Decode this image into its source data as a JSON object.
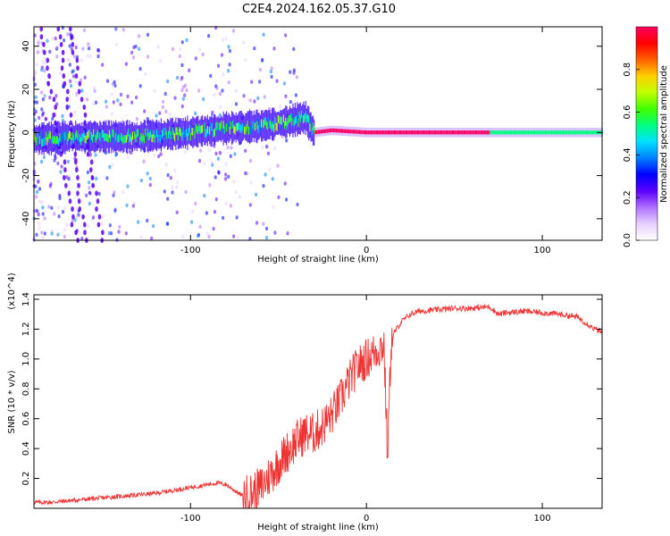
{
  "title": "C2E4.2024.162.05.37.G10",
  "chart_data": [
    {
      "type": "heatmap",
      "xlabel": "Height of straight line (km)",
      "ylabel": "Frequency (Hz)",
      "xlim": [
        -189,
        134
      ],
      "ylim": [
        -50,
        49
      ],
      "x_ticks": [
        -100,
        0,
        100
      ],
      "y_ticks": [
        -40,
        -20,
        0,
        20,
        40
      ],
      "grid": false,
      "colorbar": {
        "label": "Normalized spectral amplitude",
        "range": [
          0,
          1
        ],
        "ticks": [
          "0.0",
          "0.2",
          "0.4",
          "0.6",
          "0.8"
        ],
        "colormap": [
          "#ffffff",
          "#e6d0ff",
          "#b070ff",
          "#5a00ff",
          "#0000ff",
          "#0080ff",
          "#00e0ff",
          "#00ff80",
          "#40ff00",
          "#c0ff00",
          "#ffd000",
          "#ff6000",
          "#ff0000",
          "#ff0060"
        ]
      },
      "ridge": {
        "x": [
          -189,
          -160,
          -130,
          -100,
          -80,
          -60,
          -45,
          -35,
          -30,
          -20,
          0,
          20,
          60,
          100,
          134
        ],
        "freq": [
          -3,
          -2,
          -2,
          0,
          2,
          3,
          5,
          7,
          0,
          1,
          0,
          0,
          0,
          0,
          0
        ]
      },
      "notes": "Spectral amplitude ridge near 0 Hz; broad noisy cloud below about -30 km, narrow high-amplitude band above it"
    },
    {
      "type": "line",
      "xlabel": "Height of straight line (km)",
      "ylabel": "SNR (10 * v/v)",
      "y_multiplier": "(x10^4)",
      "xlim": [
        -189,
        134
      ],
      "ylim": [
        0,
        1.43
      ],
      "x_ticks": [
        -100,
        0,
        100
      ],
      "y_ticks": [
        "0.2",
        "0.4",
        "0.6",
        "0.8",
        "1.0",
        "1.2",
        "1.4"
      ],
      "color": "#ee3333",
      "series": [
        {
          "x": [
            -189,
            -180,
            -170,
            -160,
            -150,
            -140,
            -130,
            -120,
            -110,
            -100,
            -90,
            -85,
            -80,
            -75,
            -70,
            -65,
            -60,
            -55,
            -50,
            -45,
            -40,
            -35,
            -30,
            -25,
            -20,
            -15,
            -10,
            -5,
            0,
            5,
            10,
            12,
            14,
            16,
            20,
            25,
            30,
            40,
            50,
            60,
            70,
            75,
            80,
            90,
            100,
            110,
            120,
            125,
            130,
            134
          ],
          "values": [
            0.04,
            0.04,
            0.05,
            0.06,
            0.07,
            0.08,
            0.09,
            0.1,
            0.12,
            0.14,
            0.16,
            0.17,
            0.16,
            0.12,
            0.08,
            0.1,
            0.14,
            0.22,
            0.3,
            0.38,
            0.45,
            0.5,
            0.5,
            0.55,
            0.62,
            0.72,
            0.85,
            0.95,
            1.0,
            1.05,
            1.1,
            0.35,
            1.1,
            1.18,
            1.25,
            1.3,
            1.32,
            1.33,
            1.34,
            1.34,
            1.35,
            1.3,
            1.31,
            1.32,
            1.31,
            1.3,
            1.28,
            1.24,
            1.2,
            1.18
          ]
        }
      ]
    }
  ]
}
